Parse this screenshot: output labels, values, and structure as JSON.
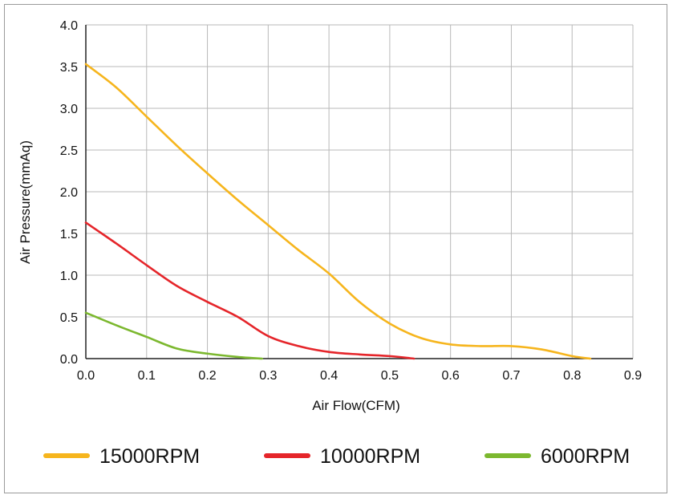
{
  "chart_data": {
    "type": "line",
    "xlabel": "Air Flow(CFM)",
    "ylabel": "Air Pressure(mmAq)",
    "xlim": [
      0,
      0.9
    ],
    "ylim": [
      0,
      4.0
    ],
    "x_ticks": [
      "0.0",
      "0.1",
      "0.2",
      "0.3",
      "0.4",
      "0.5",
      "0.6",
      "0.7",
      "0.8",
      "0.9"
    ],
    "y_ticks": [
      "0.0",
      "0.5",
      "1.0",
      "1.5",
      "2.0",
      "2.5",
      "3.0",
      "3.5",
      "4.0"
    ],
    "grid": true,
    "legend_position": "bottom",
    "series": [
      {
        "name": "15000RPM",
        "color": "#f6b51d",
        "x": [
          0.0,
          0.05,
          0.1,
          0.15,
          0.2,
          0.25,
          0.3,
          0.35,
          0.4,
          0.45,
          0.5,
          0.55,
          0.6,
          0.65,
          0.7,
          0.75,
          0.8,
          0.83
        ],
        "y": [
          3.53,
          3.25,
          2.9,
          2.55,
          2.22,
          1.9,
          1.6,
          1.3,
          1.02,
          0.68,
          0.42,
          0.25,
          0.17,
          0.15,
          0.15,
          0.11,
          0.03,
          0.0
        ]
      },
      {
        "name": "10000RPM",
        "color": "#e5252a",
        "x": [
          0.0,
          0.05,
          0.1,
          0.15,
          0.2,
          0.25,
          0.3,
          0.35,
          0.4,
          0.45,
          0.5,
          0.54
        ],
        "y": [
          1.63,
          1.38,
          1.12,
          0.87,
          0.68,
          0.5,
          0.27,
          0.15,
          0.08,
          0.05,
          0.03,
          0.0
        ]
      },
      {
        "name": "6000RPM",
        "color": "#7cb82f",
        "x": [
          0.0,
          0.05,
          0.1,
          0.15,
          0.2,
          0.25,
          0.29
        ],
        "y": [
          0.55,
          0.4,
          0.26,
          0.12,
          0.06,
          0.02,
          0.0
        ]
      }
    ]
  }
}
